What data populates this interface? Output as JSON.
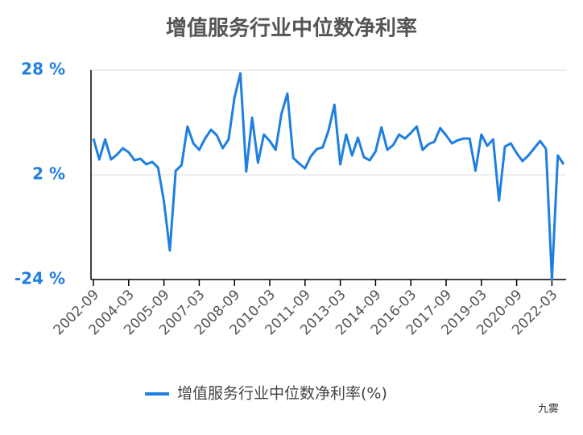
{
  "chart_data": {
    "type": "line",
    "title": "增值服务行业中位数净利率",
    "watermark": "九雾",
    "categories": [
      "2002-09",
      null,
      null,
      null,
      null,
      null,
      "2004-03",
      null,
      null,
      null,
      null,
      null,
      "2005-09",
      null,
      null,
      null,
      null,
      null,
      "2007-03",
      null,
      null,
      null,
      null,
      null,
      "2008-09",
      null,
      null,
      null,
      null,
      null,
      "2010-03",
      null,
      null,
      null,
      null,
      null,
      "2011-09",
      null,
      null,
      null,
      null,
      null,
      "2013-03",
      null,
      null,
      null,
      null,
      null,
      "2014-09",
      null,
      null,
      null,
      null,
      null,
      "2016-03",
      null,
      null,
      null,
      null,
      null,
      "2017-09",
      null,
      null,
      null,
      null,
      null,
      "2019-03",
      null,
      null,
      null,
      null,
      null,
      "2020-09",
      null,
      null,
      null,
      null,
      null,
      "2022-03",
      null,
      null
    ],
    "series": [
      {
        "name": "增值服务行业中位数净利率(%)",
        "color": "#1f7fe0",
        "values": [
          11,
          5.8,
          10.8,
          5.8,
          7,
          8.6,
          7.6,
          5.6,
          6,
          4.6,
          5.2,
          3.8,
          -4.6,
          -16.8,
          3,
          4.4,
          14,
          9.8,
          8.2,
          11,
          13.2,
          11.8,
          8.6,
          10.8,
          21.2,
          27.2,
          2.8,
          16.2,
          5,
          12,
          10.4,
          8.2,
          17.2,
          22.2,
          6.2,
          4.8,
          3.6,
          6.6,
          8.4,
          8.8,
          13,
          19.4,
          4.6,
          12,
          6.8,
          11.2,
          6.4,
          5.6,
          7.8,
          13.8,
          8.2,
          9.4,
          12,
          11,
          12.4,
          14,
          8.2,
          9.6,
          10.2,
          13.6,
          11.8,
          9.8,
          10.6,
          11,
          11,
          3,
          12,
          9.2,
          10.8,
          -4.4,
          9,
          9.8,
          7.4,
          5.4,
          6.8,
          8.6,
          10.4,
          8.4,
          -24,
          6.8,
          4.6
        ]
      }
    ],
    "ylim": [
      -24,
      28
    ],
    "yticks": [
      {
        "value": -24,
        "label": "-24 %"
      },
      {
        "value": 2,
        "label": "2 %"
      },
      {
        "value": 28,
        "label": "28 %"
      }
    ],
    "grid": true,
    "legend": "bottom"
  }
}
